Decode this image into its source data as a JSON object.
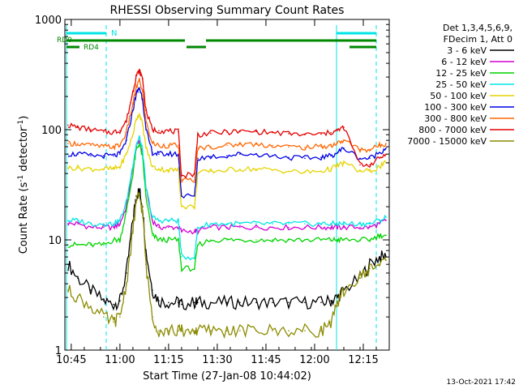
{
  "chart_data": {
    "type": "line",
    "title": "RHESSI Observing Summary Count Rates",
    "xlabel": "Start Time (27-Jan-08 10:44:02)",
    "ylabel": "Count Rate (s⁻¹ detector⁻¹)",
    "yscale": "log",
    "ylim": [
      1,
      1000
    ],
    "xlim": [
      "10:44:02",
      "12:24:00"
    ],
    "x_tick_labels": [
      "10:45",
      "11:00",
      "11:15",
      "11:30",
      "11:45",
      "12:00",
      "12:15"
    ],
    "x_tick_minutes": [
      646,
      661,
      676,
      691,
      706,
      721,
      736
    ],
    "y_tick_labels": [
      "1",
      "10",
      "100",
      "1000"
    ],
    "grid": false,
    "legend_header": [
      "Det 1,3,4,5,6,9,",
      "FDecim 1, Att 0"
    ],
    "legend_position": "right",
    "x": [
      "10:45",
      "10:48",
      "10:52",
      "10:56",
      "10:59",
      "11:01",
      "11:03",
      "11:05",
      "11:06",
      "11:07",
      "11:08",
      "11:09",
      "11:11",
      "11:13",
      "11:16",
      "11:19",
      "11:20",
      "11:24",
      "11:25",
      "11:29",
      "11:34",
      "11:38",
      "11:43",
      "11:48",
      "11:53",
      "11:58",
      "12:03",
      "12:06",
      "12:08",
      "12:10",
      "12:15",
      "12:18",
      "12:21",
      "12:23"
    ],
    "series": [
      {
        "name": "3 - 6 keV",
        "color": "#000000",
        "values": [
          6,
          4.5,
          3.5,
          2.8,
          2.6,
          2.8,
          5,
          15,
          25,
          28,
          20,
          8,
          3.5,
          2.8,
          2.7,
          2.7,
          2.6,
          2.7,
          2.7,
          2.7,
          2.7,
          2.7,
          2.7,
          2.7,
          2.7,
          2.7,
          2.7,
          2.8,
          3,
          3.5,
          4.5,
          6,
          7,
          7
        ]
      },
      {
        "name": "6 - 12 keV",
        "color": "#d400d4",
        "values": [
          14,
          14,
          13,
          13,
          13,
          14,
          20,
          45,
          70,
          80,
          60,
          30,
          15,
          13,
          13,
          13,
          12,
          12,
          12,
          13,
          13,
          13,
          13,
          13,
          13,
          13,
          13,
          13,
          13,
          13,
          13,
          13,
          14,
          15
        ]
      },
      {
        "name": "12 - 25 keV",
        "color": "#00d400",
        "values": [
          9,
          9,
          9,
          9,
          10,
          10,
          18,
          40,
          65,
          75,
          55,
          25,
          11,
          10,
          10,
          10,
          5.5,
          5.5,
          9,
          10,
          10,
          10,
          10,
          10,
          10,
          10,
          10,
          10,
          10,
          10,
          10,
          10,
          11,
          11
        ]
      },
      {
        "name": "25 - 50 keV",
        "color": "#00e5e5",
        "values": [
          15,
          15,
          14,
          14,
          14,
          15,
          22,
          48,
          72,
          85,
          65,
          30,
          16,
          15,
          15,
          15,
          7,
          7,
          13,
          14,
          14,
          14,
          14,
          14,
          14,
          14,
          14,
          14,
          14,
          14,
          14,
          14,
          15,
          16
        ]
      },
      {
        "name": "50 - 100 keV",
        "color": "#e5d400",
        "values": [
          45,
          45,
          44,
          44,
          44,
          46,
          60,
          90,
          125,
          140,
          110,
          70,
          46,
          44,
          43,
          43,
          20,
          20,
          40,
          42,
          43,
          44,
          44,
          43,
          42,
          41,
          42,
          44,
          47,
          50,
          42,
          42,
          46,
          50
        ]
      },
      {
        "name": "100 - 300 keV",
        "color": "#0000e5",
        "values": [
          60,
          60,
          58,
          58,
          58,
          60,
          80,
          150,
          210,
          240,
          190,
          100,
          62,
          60,
          60,
          60,
          25,
          25,
          55,
          57,
          58,
          60,
          60,
          58,
          56,
          55,
          56,
          58,
          62,
          68,
          55,
          55,
          62,
          68
        ]
      },
      {
        "name": "300 - 800 keV",
        "color": "#ff6600",
        "values": [
          75,
          75,
          72,
          70,
          70,
          72,
          95,
          170,
          240,
          280,
          220,
          120,
          75,
          72,
          72,
          72,
          35,
          35,
          68,
          70,
          72,
          74,
          74,
          72,
          70,
          69,
          70,
          72,
          75,
          80,
          66,
          66,
          72,
          75
        ]
      },
      {
        "name": "800 - 7000 keV",
        "color": "#e50000",
        "values": [
          110,
          105,
          100,
          95,
          95,
          98,
          120,
          220,
          310,
          340,
          290,
          150,
          100,
          98,
          97,
          96,
          38,
          40,
          90,
          93,
          95,
          96,
          96,
          94,
          92,
          90,
          91,
          94,
          98,
          105,
          48,
          48,
          55,
          60
        ]
      },
      {
        "name": "7000 - 15000 keV",
        "color": "#8b8b00",
        "values": [
          3.5,
          3,
          2.5,
          2,
          1.8,
          2,
          4,
          12,
          22,
          25,
          18,
          6,
          2,
          1.5,
          1.5,
          1.5,
          1.5,
          1.5,
          1.5,
          1.5,
          1.5,
          1.5,
          1.5,
          1.5,
          1.5,
          1.5,
          1.5,
          1.8,
          2.5,
          3.5,
          4.5,
          5.5,
          6,
          6.5
        ]
      }
    ],
    "annotations": [
      {
        "label": "N",
        "color": "#00e5e5"
      },
      {
        "label": "RD0",
        "color": "#008800"
      },
      {
        "label": "RD4",
        "color": "#008800"
      }
    ]
  },
  "footer": {
    "timestamp": "13-Oct-2021 17:42"
  }
}
